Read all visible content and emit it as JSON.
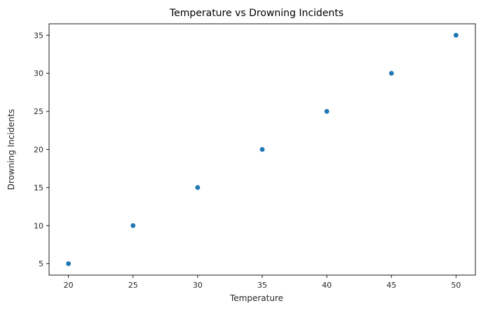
{
  "chart_data": {
    "type": "scatter",
    "title": "Temperature vs Drowning Incidents",
    "xlabel": "Temperature",
    "ylabel": "Drowning Incidents",
    "x": [
      20,
      25,
      30,
      35,
      40,
      45,
      50
    ],
    "y": [
      5,
      10,
      15,
      20,
      25,
      30,
      35
    ],
    "xlim": [
      18.5,
      51.5
    ],
    "ylim": [
      3.5,
      36.5
    ],
    "xticks": [
      20,
      25,
      30,
      35,
      40,
      45,
      50
    ],
    "yticks": [
      5,
      10,
      15,
      20,
      25,
      30,
      35
    ],
    "grid": false,
    "marker_color": "#1f77b4"
  }
}
